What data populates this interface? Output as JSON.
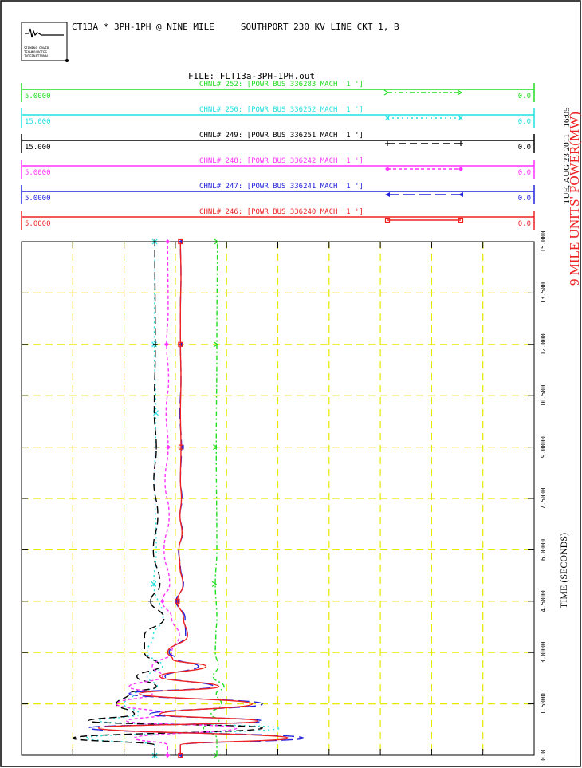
{
  "header": {
    "title": "CT13A * 3PH-1PH @ NINE MILE     SOUTHPORT 230 KV LINE CKT 1, B",
    "file_label": "FILE: FLT13a-3PH-1PH.out",
    "logo_text": [
      "SIEMENS POWER",
      "TECHNOLOGIES",
      "INTERNATIONAL"
    ]
  },
  "side": {
    "date": "TUE, AUG 23 2011   16:05",
    "ylabel": "9 MILE UNITS' POWER(MW)",
    "xlabel": "TIME (SECONDS)"
  },
  "colors": {
    "green": "#22dd22",
    "cyan": "#22e0e0",
    "black": "#000000",
    "magenta": "#ff33ff",
    "blue": "#2222dd",
    "red": "#ee2222",
    "grid": "#e8e800"
  },
  "chart_data": {
    "type": "line",
    "orientation": "rotated",
    "x_axis": {
      "label": "TIME (SECONDS)",
      "range": [
        0,
        15
      ],
      "ticks": [
        "0.0",
        "1.5000",
        "3.0000",
        "4.5000",
        "6.0000",
        "7.5000",
        "9.0000",
        "10.500",
        "12.000",
        "13.500",
        "15.000"
      ]
    },
    "grid": true,
    "series": [
      {
        "key": "green",
        "name": "CHNL# 252: [POWR BUS 336283 MACH '1 ']",
        "scale_min": "5.0000",
        "scale_max": "0.0",
        "x": [
          0,
          0.5,
          0.8,
          1.0,
          1.2,
          1.5,
          1.8,
          2.0,
          2.3,
          2.6,
          3.0,
          3.5,
          4.0,
          5.0,
          6.0,
          9.0,
          12.0,
          15.0
        ],
        "y": [
          38.1,
          38.1,
          35.5,
          38.5,
          37.0,
          39.0,
          38.0,
          39.5,
          37.4,
          38.4,
          37.8,
          37.9,
          38.1,
          37.8,
          38.1,
          38.0,
          38.1,
          38.2
        ]
      },
      {
        "key": "cyan",
        "name": "CHNL# 250: [POWR BUS 336252 MACH '1 ']",
        "scale_min": "15.000",
        "scale_max": "0.0",
        "x": [
          0,
          0.3,
          0.5,
          0.8,
          1.0,
          1.2,
          1.5,
          1.8,
          2.0,
          2.3,
          2.6,
          3.0,
          3.5,
          4.0,
          5.0,
          6.0,
          8.0,
          10.0,
          12.0,
          15.0
        ],
        "y": [
          26.0,
          26.0,
          12.5,
          50.5,
          15.0,
          23.0,
          20.0,
          22.0,
          26.5,
          24.5,
          27.5,
          24.5,
          25.7,
          27.6,
          25.8,
          26.3,
          26.0,
          26.2,
          25.9,
          26.0
        ]
      },
      {
        "key": "black",
        "name": "CHNL# 249: [POWR BUS 336251 MACH '1 ']",
        "scale_min": "15.000",
        "scale_max": "0.0",
        "x": [
          0,
          0.3,
          0.5,
          0.8,
          1.0,
          1.2,
          1.5,
          1.8,
          2.0,
          2.3,
          2.6,
          3.0,
          3.5,
          4.0,
          4.5,
          5.0,
          6.0,
          7.0,
          8.0,
          9.0,
          10.0,
          12.0,
          15.0
        ],
        "y": [
          26.0,
          26.0,
          10.0,
          47.0,
          13.0,
          22.0,
          18.5,
          21.0,
          26.3,
          22.5,
          27.0,
          24.0,
          24.0,
          27.8,
          25.2,
          27.0,
          25.7,
          26.6,
          25.8,
          26.3,
          25.9,
          26.1,
          26.0
        ]
      },
      {
        "key": "magenta",
        "name": "CHNL# 248: [POWR BUS 336242 MACH '1 ']",
        "scale_min": "5.0000",
        "scale_max": "0.0",
        "x": [
          0,
          0.3,
          0.5,
          0.8,
          1.0,
          1.2,
          1.5,
          1.8,
          2.0,
          2.3,
          2.6,
          3.0,
          3.5,
          4.0,
          4.5,
          5.0,
          6.0,
          7.0,
          8.0,
          9.0,
          10.0,
          11.0,
          12.0,
          13.0,
          15.0
        ],
        "y": [
          28.5,
          28.5,
          22.0,
          42.0,
          20.5,
          28.0,
          18.5,
          25.5,
          21.0,
          27.5,
          25.5,
          29.3,
          30.8,
          29.3,
          27.5,
          28.9,
          27.8,
          28.8,
          28.0,
          28.6,
          28.2,
          28.7,
          28.3,
          28.6,
          28.5
        ]
      },
      {
        "key": "blue",
        "name": "CHNL# 247: [POWR BUS 336241 MACH '1 ']",
        "scale_min": "5.0000",
        "scale_max": "0.0",
        "x": [
          0,
          0.3,
          0.5,
          0.8,
          1.0,
          1.2,
          1.5,
          1.8,
          2.0,
          2.3,
          2.6,
          2.8,
          3.0,
          3.5,
          4.0,
          4.5,
          5.0,
          5.5,
          6.0,
          6.5,
          7.0,
          7.5,
          8.0,
          9.0,
          10.0,
          11.0,
          12.0,
          13.0,
          14.0,
          15.0
        ],
        "y": [
          31.0,
          31.0,
          55.0,
          13.0,
          47.0,
          25.0,
          47.0,
          21.0,
          37.5,
          28.0,
          34.5,
          30.5,
          28.8,
          32.0,
          31.9,
          30.2,
          31.6,
          31.0,
          30.6,
          31.4,
          30.9,
          31.3,
          31.0,
          31.2,
          30.9,
          31.1,
          31.0,
          31.0,
          31.1,
          31.0
        ]
      },
      {
        "key": "red",
        "name": "CHNL# 246: [POWR BUS 336240 MACH '1 ']",
        "scale_min": "5.0000",
        "scale_max": "0.0",
        "x": [
          0,
          0.3,
          0.5,
          0.8,
          1.0,
          1.2,
          1.5,
          1.8,
          2.0,
          2.3,
          2.6,
          2.8,
          3.0,
          3.5,
          4.0,
          4.5,
          5.0,
          5.5,
          6.0,
          6.5,
          7.0,
          7.5,
          8.0,
          9.0,
          10.0,
          11.0,
          12.0,
          13.0,
          14.0,
          15.0
        ],
        "y": [
          31.0,
          31.0,
          52.0,
          15.0,
          46.0,
          27.0,
          45.0,
          23.0,
          38.5,
          27.0,
          36.0,
          29.5,
          28.5,
          32.4,
          31.6,
          30.4,
          31.5,
          30.9,
          30.7,
          31.3,
          30.9,
          31.2,
          31.0,
          31.1,
          31.0,
          31.1,
          31.0,
          31.0,
          31.1,
          31.0
        ]
      }
    ]
  }
}
